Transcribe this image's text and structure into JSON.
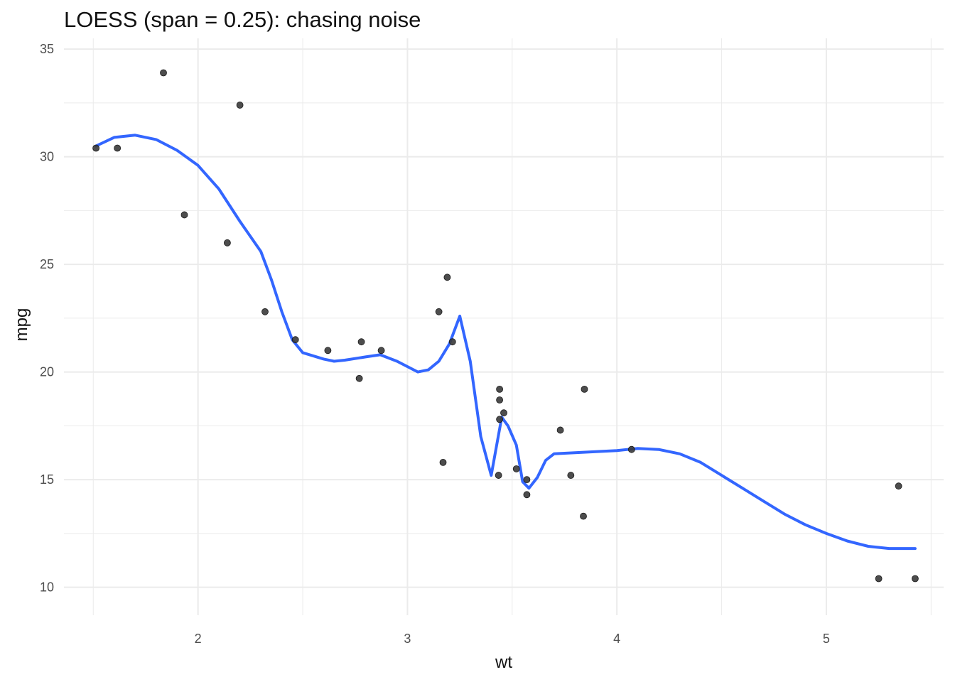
{
  "chart_data": {
    "type": "scatter",
    "title": "LOESS (span = 0.25): chasing noise",
    "xlabel": "wt",
    "ylabel": "mpg",
    "xlim": [
      1.36,
      5.56
    ],
    "ylim": [
      8.7,
      35.5
    ],
    "x_ticks": [
      2,
      3,
      4,
      5
    ],
    "x_minor_ticks": [
      1.5,
      2.5,
      3.5,
      4.5,
      5.5
    ],
    "y_ticks": [
      10,
      15,
      20,
      25,
      30,
      35
    ],
    "y_minor_ticks": [
      12.5,
      17.5,
      22.5,
      27.5,
      32.5
    ],
    "grid": true,
    "colors": {
      "points": "#3a3a3a",
      "smooth": "#3366ff",
      "grid": "#ebebeb"
    },
    "points": [
      [
        1.513,
        30.4
      ],
      [
        1.615,
        30.4
      ],
      [
        1.835,
        33.9
      ],
      [
        1.935,
        27.3
      ],
      [
        2.14,
        26.0
      ],
      [
        2.2,
        32.4
      ],
      [
        2.32,
        22.8
      ],
      [
        2.465,
        21.5
      ],
      [
        2.62,
        21.0
      ],
      [
        2.77,
        19.7
      ],
      [
        2.78,
        21.4
      ],
      [
        2.875,
        21.0
      ],
      [
        3.15,
        22.8
      ],
      [
        3.17,
        15.8
      ],
      [
        3.19,
        24.4
      ],
      [
        3.215,
        21.4
      ],
      [
        3.435,
        15.2
      ],
      [
        3.44,
        18.7
      ],
      [
        3.44,
        19.2
      ],
      [
        3.44,
        17.8
      ],
      [
        3.46,
        18.1
      ],
      [
        3.52,
        15.5
      ],
      [
        3.57,
        15.0
      ],
      [
        3.57,
        14.3
      ],
      [
        3.73,
        17.3
      ],
      [
        3.78,
        15.2
      ],
      [
        3.84,
        13.3
      ],
      [
        3.845,
        19.2
      ],
      [
        4.07,
        16.4
      ],
      [
        5.25,
        10.4
      ],
      [
        5.345,
        14.7
      ],
      [
        5.424,
        10.4
      ]
    ],
    "smooth_series": {
      "type": "line",
      "x": [
        1.513,
        1.6,
        1.7,
        1.8,
        1.9,
        2.0,
        2.1,
        2.2,
        2.3,
        2.35,
        2.4,
        2.45,
        2.5,
        2.6,
        2.65,
        2.7,
        2.8,
        2.87,
        2.95,
        3.05,
        3.1,
        3.15,
        3.2,
        3.25,
        3.3,
        3.35,
        3.4,
        3.45,
        3.48,
        3.52,
        3.55,
        3.58,
        3.62,
        3.66,
        3.7,
        3.8,
        3.9,
        4.0,
        4.1,
        4.2,
        4.3,
        4.4,
        4.5,
        4.6,
        4.7,
        4.8,
        4.9,
        5.0,
        5.1,
        5.2,
        5.3,
        5.424
      ],
      "y": [
        30.5,
        30.9,
        31.0,
        30.8,
        30.3,
        29.6,
        28.5,
        27.0,
        25.6,
        24.3,
        22.8,
        21.5,
        20.9,
        20.6,
        20.5,
        20.55,
        20.7,
        20.8,
        20.5,
        20.0,
        20.1,
        20.5,
        21.3,
        22.6,
        20.5,
        17.0,
        15.2,
        17.9,
        17.5,
        16.6,
        14.9,
        14.6,
        15.1,
        15.9,
        16.2,
        16.25,
        16.3,
        16.35,
        16.45,
        16.4,
        16.2,
        15.8,
        15.2,
        14.6,
        14.0,
        13.4,
        12.9,
        12.5,
        12.15,
        11.9,
        11.8,
        11.8
      ]
    }
  }
}
